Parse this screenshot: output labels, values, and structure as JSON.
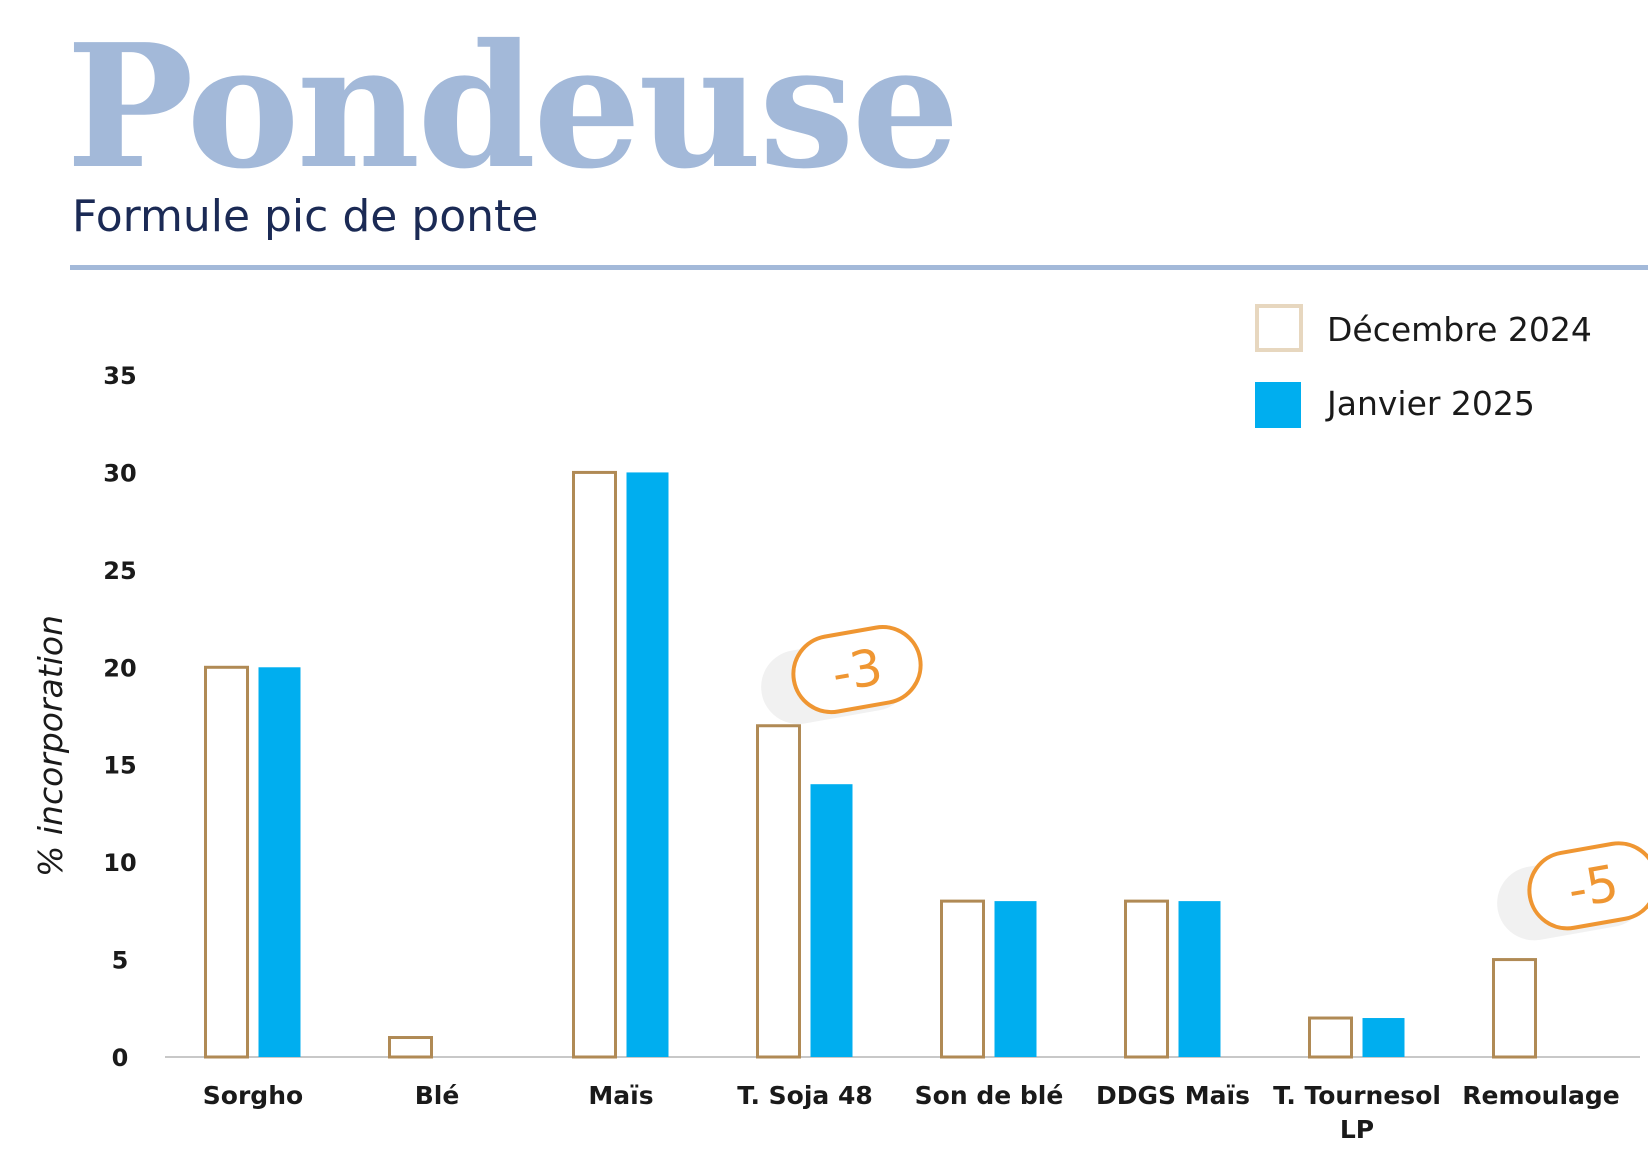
{
  "header": {
    "title": "Pondeuse",
    "subtitle": "Formule pic de ponte"
  },
  "colors": {
    "title": "#a3b9d9",
    "subtitle": "#1b2a55",
    "dec_outline": "#b08a55",
    "jan_fill": "#00aeef",
    "annotation": "#ef9632",
    "axis": "#c8c8c8"
  },
  "chart_data": {
    "type": "bar",
    "title": "",
    "xlabel": "",
    "ylabel": "% incorporation",
    "ylim": [
      0,
      35
    ],
    "yticks": [
      0,
      5,
      10,
      15,
      20,
      25,
      30,
      35
    ],
    "grid": false,
    "legend_position": "top-right",
    "categories": [
      [
        "Sorgho"
      ],
      [
        "Blé"
      ],
      [
        "Maïs"
      ],
      [
        "T. Soja 48"
      ],
      [
        "Son de blé"
      ],
      [
        "DDGS Maïs"
      ],
      [
        "T. Tournesol",
        "LP"
      ],
      [
        "Remoulage"
      ]
    ],
    "series": [
      {
        "name": "Décembre 2024",
        "style": "outline",
        "values": [
          20,
          1,
          30,
          17,
          8,
          8,
          2,
          5
        ]
      },
      {
        "name": "Janvier 2025",
        "style": "filled",
        "values": [
          20,
          0,
          30,
          14,
          8,
          8,
          2,
          0
        ]
      }
    ],
    "annotations": [
      {
        "text": "-3",
        "category_index": 3,
        "anchor_value": 20.5
      },
      {
        "text": "-5",
        "category_index": 7,
        "anchor_value": 9.4
      }
    ]
  }
}
